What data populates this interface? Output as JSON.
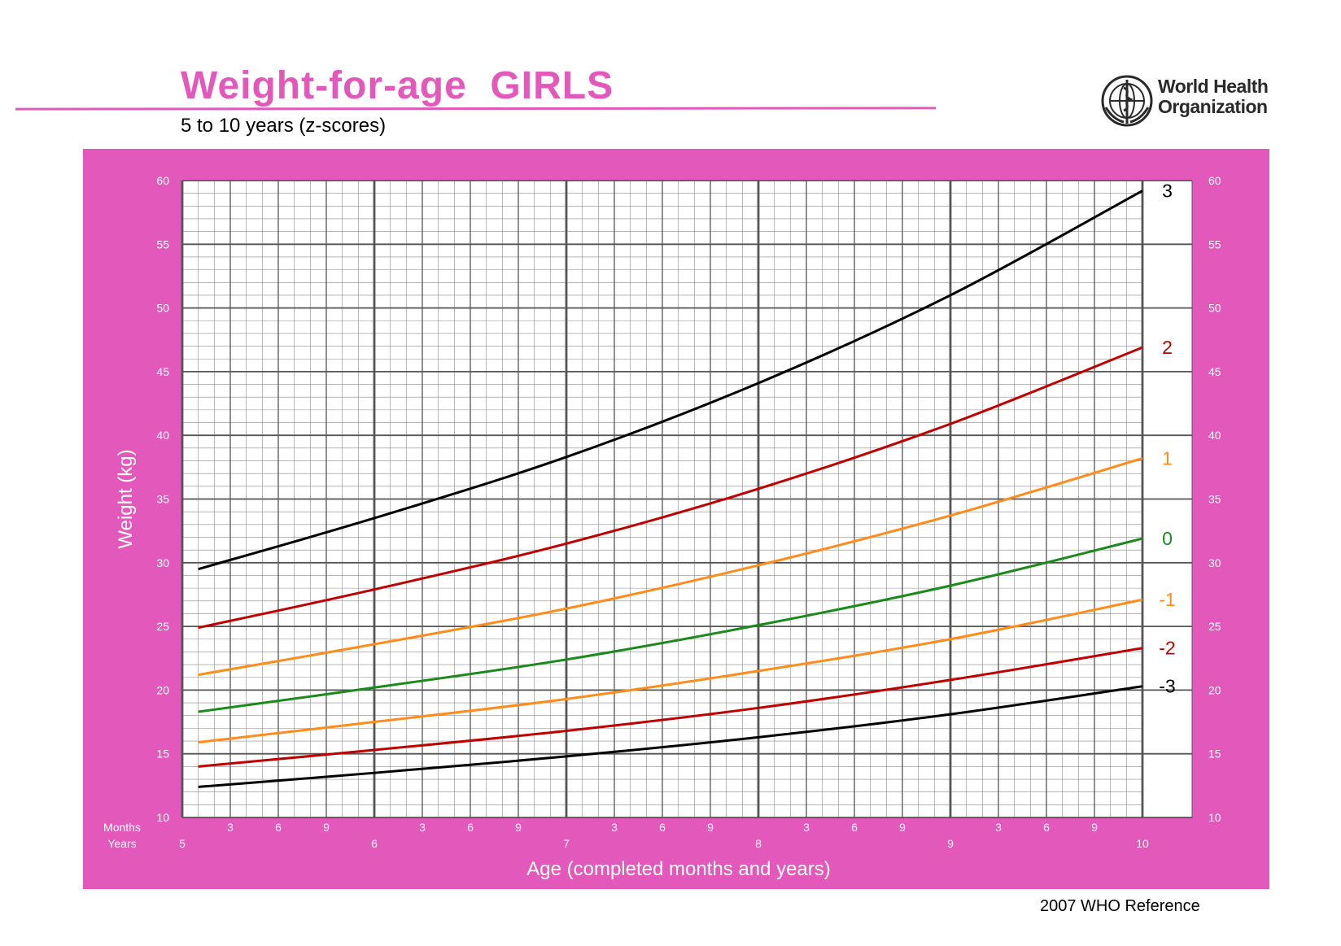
{
  "header": {
    "title": "Weight-for-age  GIRLS",
    "subtitle": "5 to 10 years (z-scores)",
    "logo_line1": "World Health",
    "logo_line2": "Organization"
  },
  "footer": {
    "text": "2007 WHO Reference"
  },
  "colors": {
    "panel": "#e258bb",
    "title": "#e258bb",
    "z3": "#000000",
    "z2": "#c00000",
    "z1": "#ff8c1a",
    "z0": "#1a8a1a"
  },
  "chart_data": {
    "type": "line",
    "xlabel": "Age (completed months and years)",
    "ylabel": "Weight (kg)",
    "xlim": [
      61,
      120
    ],
    "ylim": [
      10,
      60
    ],
    "x_unit": "months",
    "y_ticks": [
      "10",
      "15",
      "20",
      "25",
      "30",
      "35",
      "40",
      "45",
      "50",
      "55",
      "60"
    ],
    "months_label": "Months",
    "years_label": "Years",
    "month_tick_labels": [
      "3",
      "6",
      "9"
    ],
    "year_tick_labels": [
      "5",
      "6",
      "7",
      "8",
      "9",
      "10"
    ],
    "grid": true,
    "x": [
      61,
      72,
      84,
      96,
      108,
      120
    ],
    "series": [
      {
        "name": "3",
        "color": "#000000",
        "values": [
          29.5,
          33.5,
          38.3,
          44.1,
          51.0,
          59.2
        ]
      },
      {
        "name": "2",
        "color": "#c00000",
        "values": [
          24.9,
          27.9,
          31.5,
          35.8,
          40.9,
          46.9
        ]
      },
      {
        "name": "1",
        "color": "#ff8c1a",
        "values": [
          21.2,
          23.6,
          26.4,
          29.8,
          33.7,
          38.2
        ]
      },
      {
        "name": "0",
        "color": "#1a8a1a",
        "values": [
          18.3,
          20.2,
          22.4,
          25.1,
          28.2,
          31.9
        ]
      },
      {
        "name": "-1",
        "color": "#ff8c1a",
        "values": [
          15.9,
          17.5,
          19.3,
          21.5,
          24.0,
          27.1
        ]
      },
      {
        "name": "-2",
        "color": "#c00000",
        "values": [
          14.0,
          15.3,
          16.8,
          18.6,
          20.8,
          23.3
        ]
      },
      {
        "name": "-3",
        "color": "#000000",
        "values": [
          12.4,
          13.5,
          14.8,
          16.3,
          18.1,
          20.3
        ]
      }
    ]
  }
}
